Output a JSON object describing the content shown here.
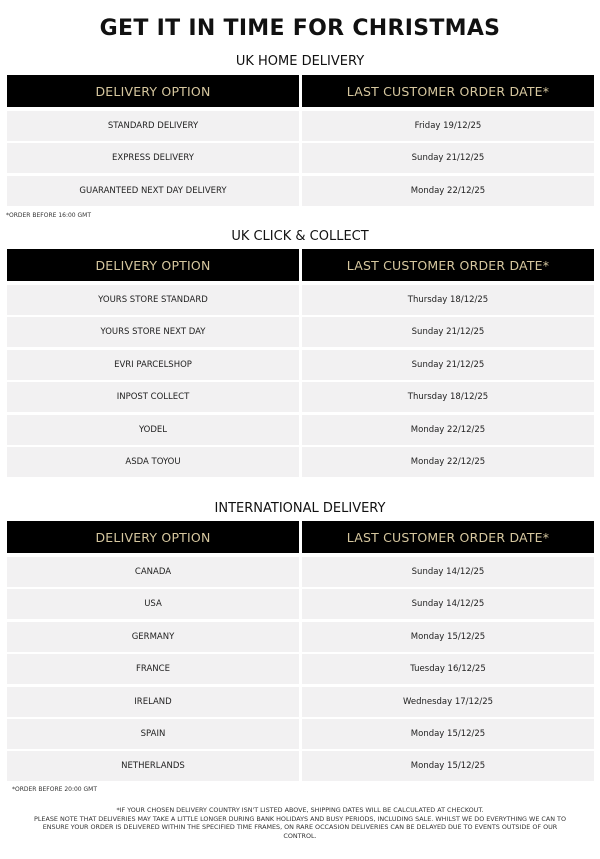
{
  "title": "GET IT IN TIME FOR CHRISTMAS",
  "header": {
    "option": "DELIVERY OPTION",
    "date": "LAST CUSTOMER ORDER DATE*"
  },
  "sections": [
    {
      "title": "UK HOME DELIVERY",
      "rows": [
        [
          "STANDARD DELIVERY",
          "Friday 19/12/25"
        ],
        [
          "EXPRESS DELIVERY",
          "Sunday 21/12/25"
        ],
        [
          "GUARANTEED NEXT DAY DELIVERY",
          "Monday 22/12/25"
        ]
      ],
      "note": "*ORDER BEFORE 16:00 GMT"
    },
    {
      "title": "UK CLICK & COLLECT",
      "rows": [
        [
          "YOURS STORE STANDARD",
          "Thursday 18/12/25"
        ],
        [
          "YOURS STORE NEXT DAY",
          "Sunday 21/12/25"
        ],
        [
          "EVRI PARCELSHOP",
          "Sunday 21/12/25"
        ],
        [
          "INPOST COLLECT",
          "Thursday 18/12/25"
        ],
        [
          "YODEL",
          "Monday 22/12/25"
        ],
        [
          "ASDA TOYOU",
          "Monday 22/12/25"
        ]
      ]
    },
    {
      "title": "INTERNATIONAL DELIVERY",
      "rows": [
        [
          "CANADA",
          "Sunday 14/12/25"
        ],
        [
          "USA",
          "Sunday 14/12/25"
        ],
        [
          "GERMANY",
          "Monday 15/12/25"
        ],
        [
          "FRANCE",
          "Tuesday 16/12/25"
        ],
        [
          "IRELAND",
          "Wednesday 17/12/25"
        ],
        [
          "SPAIN",
          "Monday 15/12/25"
        ],
        [
          "NETHERLANDS",
          "Monday 15/12/25"
        ]
      ],
      "note": "*ORDER BEFORE 20:00 GMT"
    }
  ],
  "footer": [
    "*IF YOUR CHOSEN DELIVERY COUNTRY ISN'T LISTED ABOVE, SHIPPING DATES WILL BE CALCULATED AT CHECKOUT.",
    "PLEASE NOTE THAT DELIVERIES MAY TAKE A LITTLE LONGER DURING BANK HOLIDAYS AND BUSY PERIODS, INCLUDING SALE. WHILST WE DO EVERYTHING WE CAN TO ENSURE YOUR ORDER IS DELIVERED WITHIN THE SPECIFIED TIME FRAMES, ON RARE OCCASION DELIVERIES CAN BE DELAYED DUE TO EVENTS OUTSIDE OF OUR CONTROL."
  ]
}
